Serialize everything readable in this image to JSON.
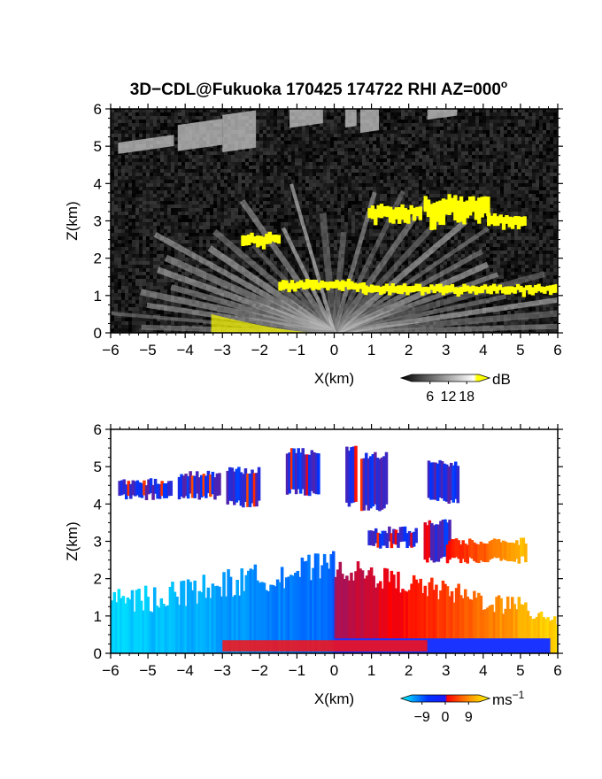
{
  "figure": {
    "title": "3D−CDL@Fukuoka 170425 174722 RHI AZ=000",
    "title_superscript": "o"
  },
  "chart_data": [
    {
      "type": "heatmap",
      "name": "reflectivity",
      "xlabel": "X(km)",
      "ylabel": "Z(km)",
      "xlim": [
        -6,
        6
      ],
      "ylim": [
        0,
        6
      ],
      "xticks": [
        "−6",
        "−5",
        "−4",
        "−3",
        "−2",
        "−1",
        "0",
        "1",
        "2",
        "3",
        "4",
        "5",
        "6"
      ],
      "yticks": [
        "0",
        "1",
        "2",
        "3",
        "4",
        "5",
        "6"
      ],
      "background_color": "#161616",
      "colorbar": {
        "unit": "dB",
        "ticks": [
          "6",
          "12",
          "18"
        ],
        "tick_values": [
          6,
          12,
          18
        ],
        "range": [
          0,
          22
        ],
        "colors": [
          "#000000",
          "#ffffff",
          "#ffff00"
        ]
      },
      "features": [
        {
          "kind": "beam_fan",
          "z_top": 3.0,
          "intensity": 0.55
        },
        {
          "kind": "layer",
          "x": [
            -1.5,
            6.0
          ],
          "z": 1.25,
          "thickness": 0.45,
          "color": "#ffff00"
        },
        {
          "kind": "layer",
          "x": [
            0.9,
            5.1
          ],
          "z": 3.0,
          "thickness": 0.55,
          "color": "#ffff00"
        },
        {
          "kind": "layer",
          "x": [
            -5.8,
            0.4
          ],
          "z": 4.6,
          "thickness": 0.5,
          "color": "#bdbdbd"
        }
      ]
    },
    {
      "type": "heatmap",
      "name": "doppler_velocity",
      "xlabel": "X(km)",
      "ylabel": "Z(km)",
      "xlim": [
        -6,
        6
      ],
      "ylim": [
        0,
        6
      ],
      "xticks": [
        "−6",
        "−5",
        "−4",
        "−3",
        "−2",
        "−1",
        "0",
        "1",
        "2",
        "3",
        "4",
        "5",
        "6"
      ],
      "yticks": [
        "0",
        "1",
        "2",
        "3",
        "4",
        "5",
        "6"
      ],
      "background_color": "#ffffff",
      "colorbar": {
        "unit": "ms",
        "unit_exponent": "−1",
        "ticks": [
          "−9",
          "0",
          "9"
        ],
        "tick_values": [
          -9,
          0,
          9
        ],
        "range": [
          -13,
          13
        ],
        "colors": [
          "#00ffff",
          "#0033ff",
          "#ff0000",
          "#ffff00"
        ]
      },
      "features": [
        {
          "kind": "fan_negative",
          "x": [
            -6.0,
            0.0
          ],
          "z": [
            0.0,
            2.5
          ],
          "values": [
            -12,
            -7
          ]
        },
        {
          "kind": "fan_positive",
          "x": [
            0.0,
            6.0
          ],
          "z": [
            0.0,
            2.8
          ],
          "values": [
            0,
            11
          ]
        },
        {
          "kind": "layer",
          "x": [
            -5.8,
            5.1
          ],
          "z": 4.6,
          "thickness": 0.6,
          "values": [
            -4,
            -1
          ]
        },
        {
          "kind": "layer",
          "x": [
            0.9,
            5.1
          ],
          "z": 3.0,
          "thickness": 0.55,
          "values": [
            2,
            9
          ]
        }
      ]
    }
  ]
}
